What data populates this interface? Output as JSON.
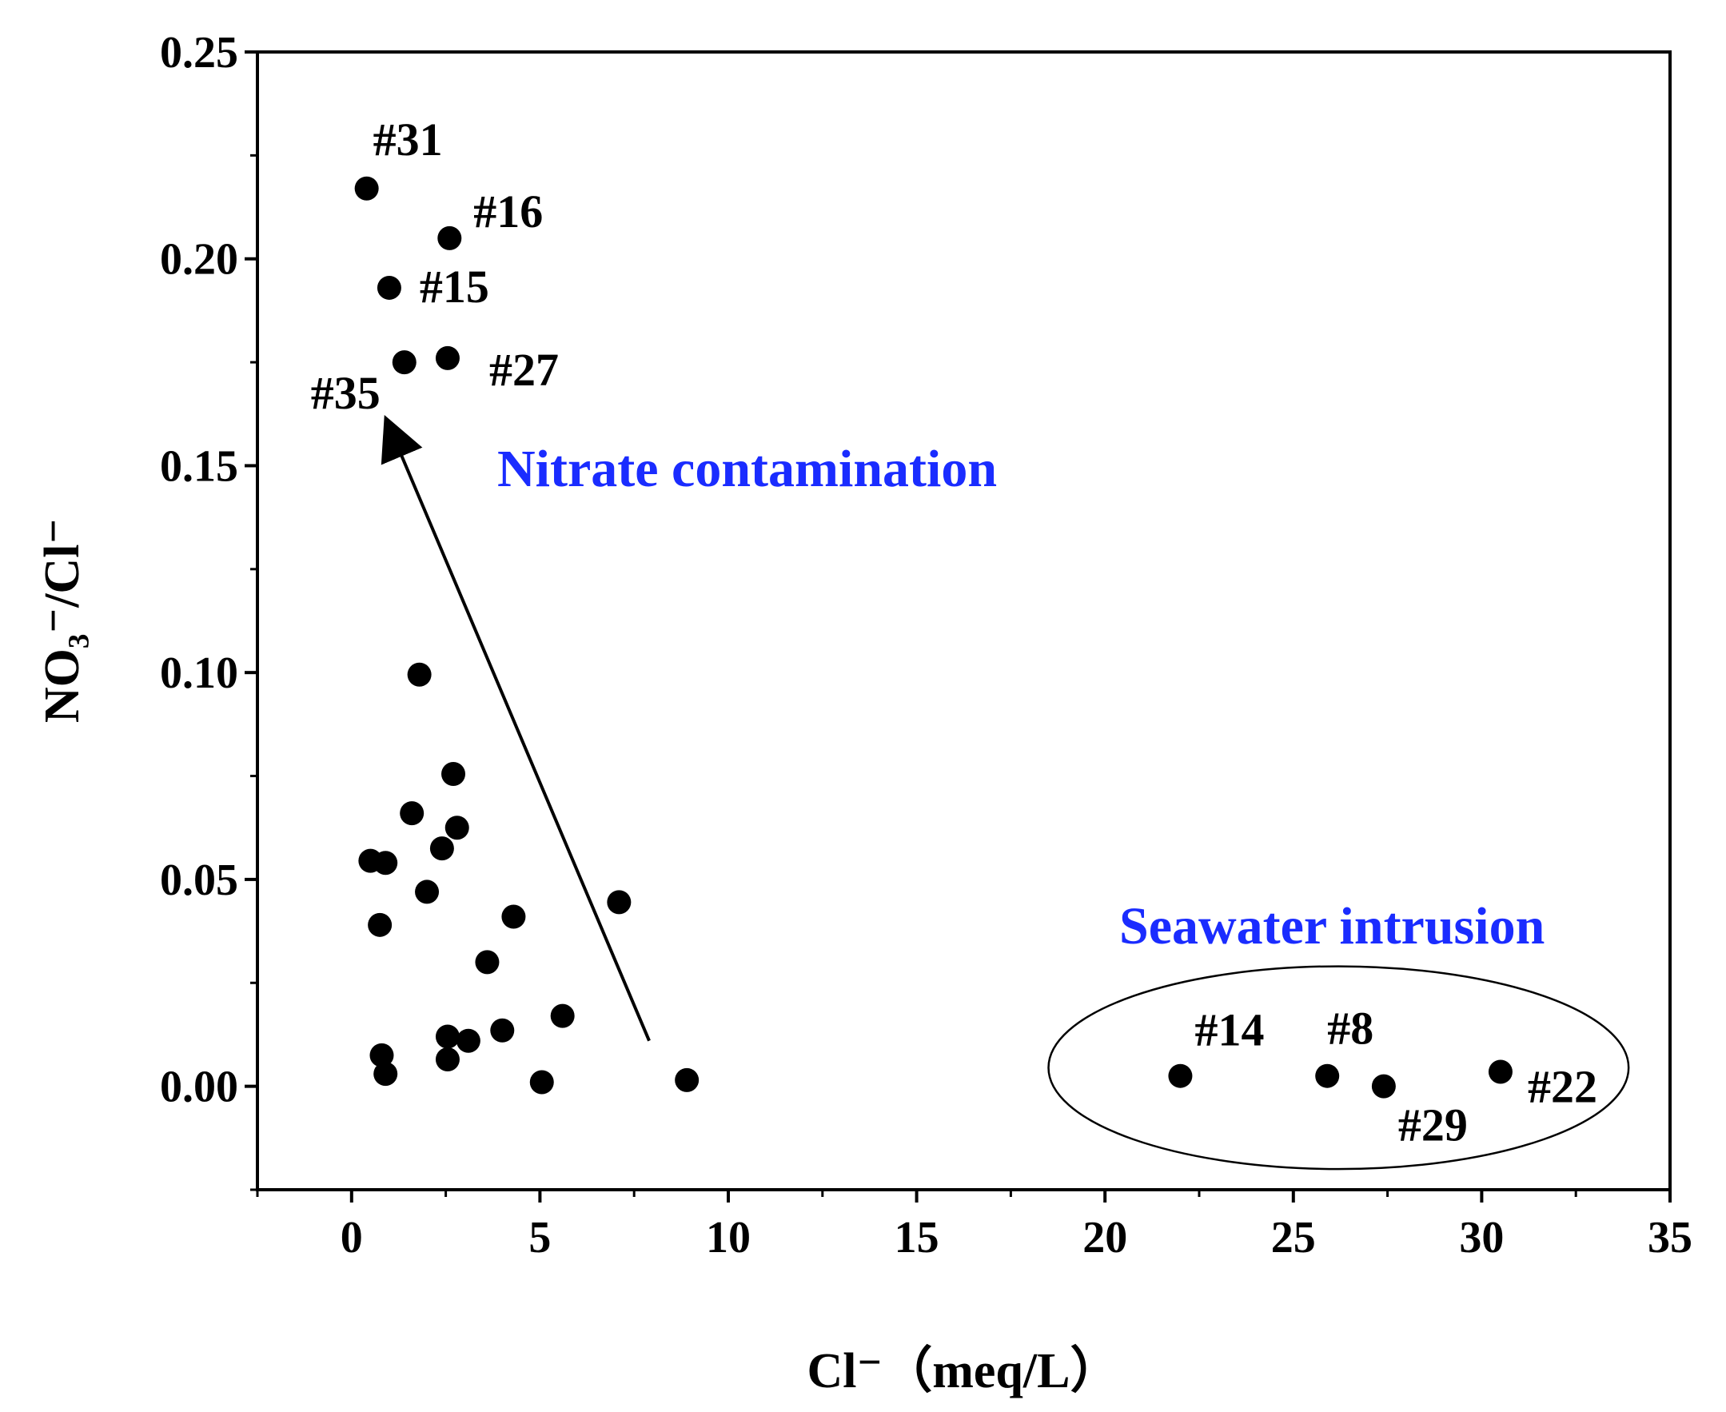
{
  "chart_data": {
    "type": "scatter",
    "title": "",
    "xlabel": "Cl⁻（meq/L）",
    "ylabel": "NO₃⁻/Cl⁻",
    "xlim": [
      -2.5,
      35
    ],
    "ylim": [
      -0.025,
      0.25
    ],
    "x_ticks": [
      "0",
      "5",
      "10",
      "15",
      "20",
      "25",
      "30",
      "35"
    ],
    "y_ticks": [
      "0.00",
      "0.05",
      "0.10",
      "0.15",
      "0.20",
      "0.25"
    ],
    "grid": false,
    "points": [
      {
        "x": 0.4,
        "y": 0.217,
        "label": "#31"
      },
      {
        "x": 2.6,
        "y": 0.205,
        "label": "#16"
      },
      {
        "x": 1.0,
        "y": 0.193,
        "label": "#15"
      },
      {
        "x": 2.55,
        "y": 0.176,
        "label": "#27"
      },
      {
        "x": 1.4,
        "y": 0.175,
        "label": "#35"
      },
      {
        "x": 1.8,
        "y": 0.0995,
        "label": ""
      },
      {
        "x": 2.7,
        "y": 0.0755,
        "label": ""
      },
      {
        "x": 1.6,
        "y": 0.066,
        "label": ""
      },
      {
        "x": 2.8,
        "y": 0.0625,
        "label": ""
      },
      {
        "x": 2.4,
        "y": 0.0575,
        "label": ""
      },
      {
        "x": 0.5,
        "y": 0.0545,
        "label": ""
      },
      {
        "x": 0.9,
        "y": 0.054,
        "label": ""
      },
      {
        "x": 2.0,
        "y": 0.047,
        "label": ""
      },
      {
        "x": 7.1,
        "y": 0.0445,
        "label": ""
      },
      {
        "x": 4.3,
        "y": 0.041,
        "label": ""
      },
      {
        "x": 0.75,
        "y": 0.039,
        "label": ""
      },
      {
        "x": 3.6,
        "y": 0.03,
        "label": ""
      },
      {
        "x": 5.6,
        "y": 0.017,
        "label": ""
      },
      {
        "x": 4.0,
        "y": 0.0135,
        "label": ""
      },
      {
        "x": 2.55,
        "y": 0.012,
        "label": ""
      },
      {
        "x": 3.1,
        "y": 0.011,
        "label": ""
      },
      {
        "x": 0.8,
        "y": 0.0075,
        "label": ""
      },
      {
        "x": 2.55,
        "y": 0.0065,
        "label": ""
      },
      {
        "x": 0.9,
        "y": 0.003,
        "label": ""
      },
      {
        "x": 5.05,
        "y": 0.001,
        "label": ""
      },
      {
        "x": 8.9,
        "y": 0.0015,
        "label": ""
      },
      {
        "x": 22.0,
        "y": 0.0025,
        "label": "#14"
      },
      {
        "x": 25.9,
        "y": 0.0025,
        "label": "#8"
      },
      {
        "x": 27.4,
        "y": 0.0,
        "label": "#29"
      },
      {
        "x": 30.5,
        "y": 0.0035,
        "label": "#22"
      }
    ],
    "annotations": [
      {
        "text": "Nitrate contamination",
        "color": "#1a2cff"
      },
      {
        "text": "Seawater intrusion",
        "color": "#1a2cff"
      }
    ],
    "arrow": {
      "from": [
        7.9,
        0.011
      ],
      "to": [
        1.3,
        0.153
      ]
    },
    "ellipse": {
      "cx": 26.2,
      "cy": 0.0045,
      "rx_data": 7.7,
      "ry_data": 0.0245
    }
  }
}
